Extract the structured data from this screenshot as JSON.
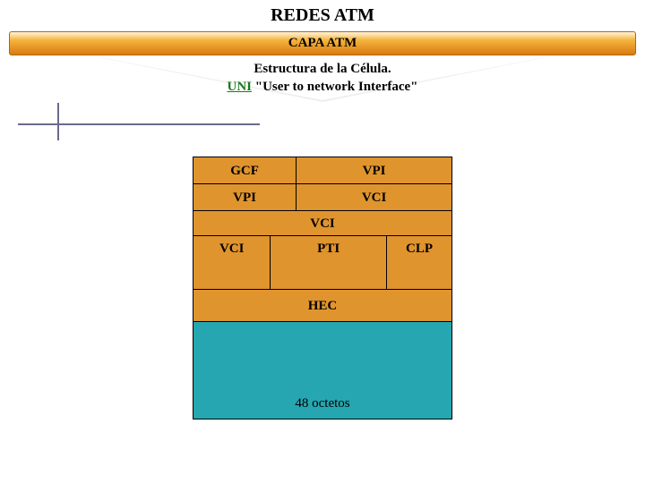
{
  "title": "REDES ATM",
  "subtitle": "CAPA ATM",
  "trapezoid": {
    "line1": "Estructura de la Célula.",
    "uni": "UNI",
    "rest": " \"User to network Interface\""
  },
  "diagram": {
    "type": "table",
    "header_bg": "#e0942e",
    "payload_bg": "#26a6b0",
    "border_color": "#000000",
    "text_color": "#000000",
    "font_family": "Times New Roman",
    "rows": [
      {
        "cells": [
          "GCF",
          "VPI"
        ],
        "widths": [
          40,
          60
        ],
        "height": 30,
        "bg": "#e0942e"
      },
      {
        "cells": [
          "VPI",
          "VCI"
        ],
        "widths": [
          40,
          60
        ],
        "height": 30,
        "bg": "#e0942e"
      },
      {
        "cells": [
          "VCI"
        ],
        "widths": [
          100
        ],
        "height": 28,
        "bg": "#e0942e"
      },
      {
        "cells": [
          "VCI",
          "PTI",
          "CLP"
        ],
        "widths": [
          30,
          45,
          25
        ],
        "height": 60,
        "bg": "#e0942e"
      },
      {
        "cells": [
          "HEC"
        ],
        "widths": [
          100
        ],
        "height": 36,
        "bg": "#e0942e"
      },
      {
        "cells": [
          "48 octetos"
        ],
        "widths": [
          100
        ],
        "height": 108,
        "bg": "#26a6b0",
        "align": "bottom"
      }
    ]
  },
  "decoration": {
    "hline_color": "#6a6a8a",
    "vline_color": "#6a6a8a"
  }
}
